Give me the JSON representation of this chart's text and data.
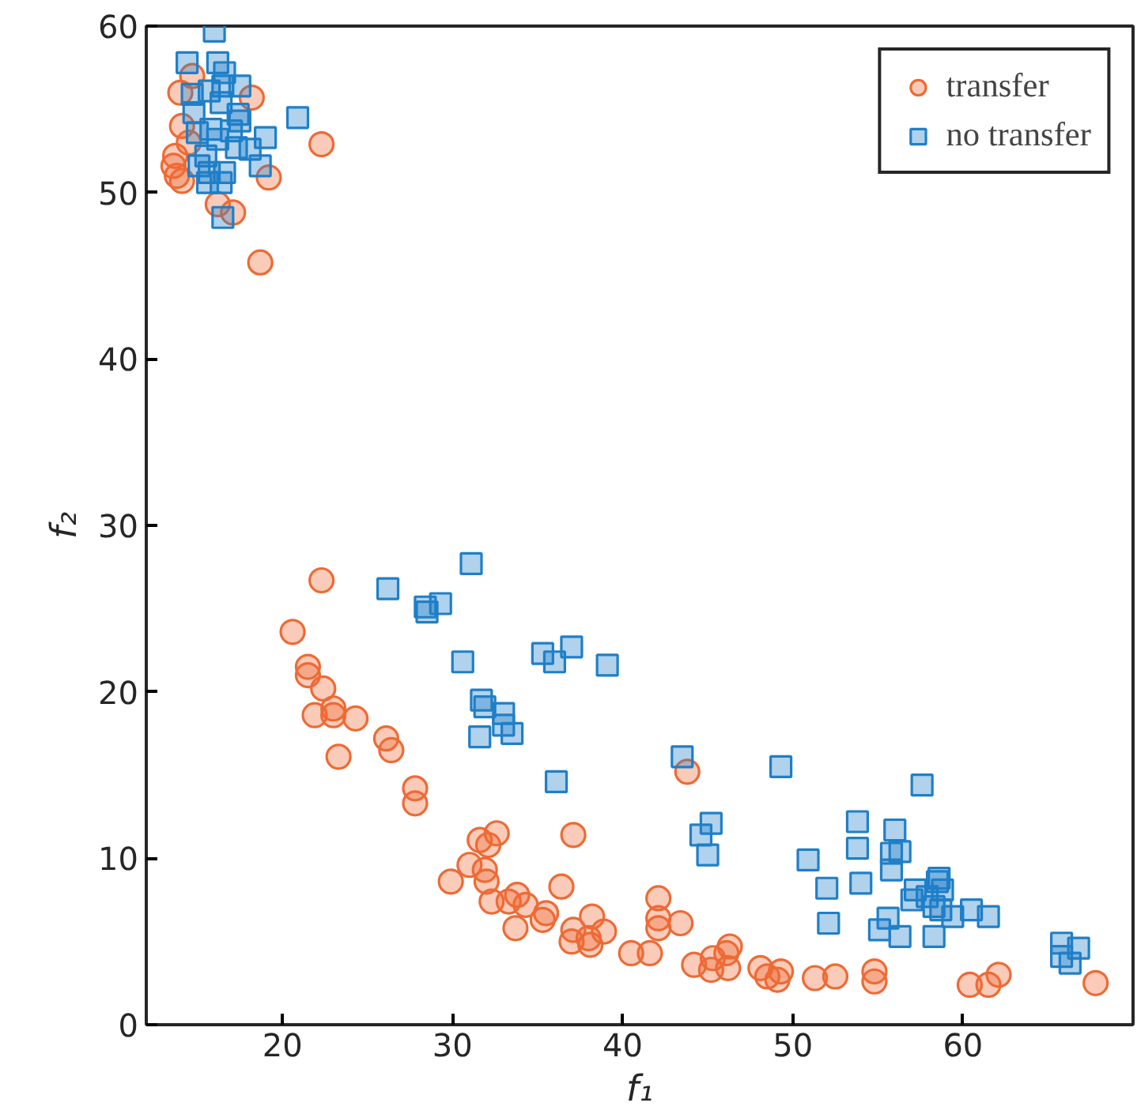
{
  "chart_data": {
    "type": "scatter",
    "xlabel": "f₁",
    "ylabel": "f₂",
    "xlim": [
      12,
      70
    ],
    "ylim": [
      0,
      60
    ],
    "xticks": [
      20,
      30,
      40,
      50,
      60
    ],
    "yticks": [
      0,
      10,
      20,
      30,
      40,
      50,
      60
    ],
    "grid": false,
    "legend": "top right",
    "series": [
      {
        "name": "transfer",
        "color": "#ee6a35",
        "marker": "circle",
        "x": [
          22.3,
          20.6,
          21.5,
          21.5,
          22.4,
          21.9,
          23.0,
          23.0,
          24.3,
          23.3,
          26.1,
          26.4,
          27.8,
          27.8,
          31.6,
          32.6,
          32.1,
          37.1,
          31.0,
          31.9,
          32.0,
          29.9,
          36.4,
          32.3,
          33.3,
          33.8,
          34.3,
          33.7,
          35.5,
          35.3,
          38.2,
          37.1,
          37.0,
          38.0,
          38.1,
          38.9,
          40.5,
          41.6,
          42.1,
          42.1,
          42.1,
          43.4,
          43.8,
          44.2,
          45.2,
          45.3,
          46.1,
          46.3,
          46.2,
          48.1,
          48.5,
          49.3,
          49.1,
          51.3,
          52.5,
          54.8,
          54.8,
          60.4,
          61.5,
          62.1,
          67.8,
          14.7,
          14.0,
          18.2,
          14.1,
          14.5,
          13.7,
          13.6,
          13.8,
          14.1,
          19.2,
          16.2,
          17.1,
          22.3,
          18.7
        ],
        "values": [
          26.7,
          23.6,
          21.5,
          21.0,
          20.2,
          18.6,
          19.0,
          18.6,
          18.4,
          16.1,
          17.2,
          16.5,
          14.2,
          13.3,
          11.1,
          11.5,
          10.8,
          11.4,
          9.6,
          9.3,
          8.6,
          8.6,
          8.3,
          7.4,
          7.4,
          7.8,
          7.2,
          5.8,
          6.7,
          6.3,
          6.5,
          5.7,
          5.0,
          5.2,
          4.8,
          5.6,
          4.3,
          4.3,
          7.6,
          6.4,
          5.8,
          6.1,
          15.2,
          3.6,
          3.3,
          4.0,
          4.3,
          4.7,
          3.4,
          3.4,
          2.9,
          3.2,
          2.7,
          2.8,
          2.9,
          3.2,
          2.6,
          2.4,
          2.4,
          3.0,
          2.5,
          57.0,
          56.0,
          55.7,
          54.0,
          53.0,
          52.2,
          51.6,
          51.0,
          50.7,
          50.9,
          49.3,
          48.8,
          52.9,
          45.8
        ]
      },
      {
        "name": "no transfer",
        "color": "#1f7fc8",
        "marker": "square",
        "x": [
          26.2,
          31.1,
          28.4,
          28.5,
          29.3,
          30.6,
          35.3,
          36.0,
          37.0,
          39.1,
          31.7,
          31.9,
          33.0,
          33.0,
          33.5,
          31.6,
          36.1,
          43.5,
          49.3,
          45.2,
          44.6,
          45.0,
          57.6,
          53.8,
          53.8,
          56.0,
          56.3,
          55.8,
          55.8,
          50.9,
          52.0,
          54.0,
          52.1,
          55.6,
          55.1,
          56.3,
          58.3,
          57.2,
          57.0,
          57.9,
          58.6,
          58.5,
          58.8,
          58.3,
          58.7,
          59.4,
          60.5,
          61.5,
          65.8,
          66.8,
          65.8,
          66.3,
          16.0,
          14.4,
          16.2,
          16.6,
          14.7,
          15.7,
          16.5,
          17.5,
          16.4,
          14.8,
          17.4,
          17.5,
          20.9,
          15.0,
          15.8,
          17.0,
          16.2,
          19.0,
          17.3,
          18.1,
          15.5,
          15.1,
          18.7,
          16.6,
          15.7,
          15.6,
          16.4,
          16.5
        ],
        "values": [
          26.2,
          27.7,
          25.1,
          24.8,
          25.3,
          21.8,
          22.3,
          21.8,
          22.7,
          21.6,
          19.5,
          19.1,
          18.7,
          18.0,
          17.5,
          17.3,
          14.6,
          16.1,
          15.5,
          12.1,
          11.4,
          10.2,
          14.4,
          12.2,
          10.6,
          11.7,
          10.4,
          10.3,
          9.3,
          9.9,
          8.2,
          8.5,
          6.1,
          6.4,
          5.7,
          5.3,
          5.3,
          8.1,
          7.5,
          7.7,
          8.8,
          8.6,
          8.1,
          7.1,
          6.9,
          6.5,
          6.9,
          6.5,
          4.9,
          4.6,
          4.1,
          3.7,
          59.7,
          57.8,
          57.8,
          57.2,
          55.9,
          56.1,
          56.4,
          56.4,
          55.4,
          54.8,
          54.7,
          54.3,
          54.5,
          53.6,
          53.8,
          53.7,
          53.2,
          53.3,
          52.7,
          52.6,
          52.2,
          51.6,
          51.6,
          51.2,
          51.2,
          50.6,
          50.6,
          48.5
        ]
      }
    ]
  }
}
